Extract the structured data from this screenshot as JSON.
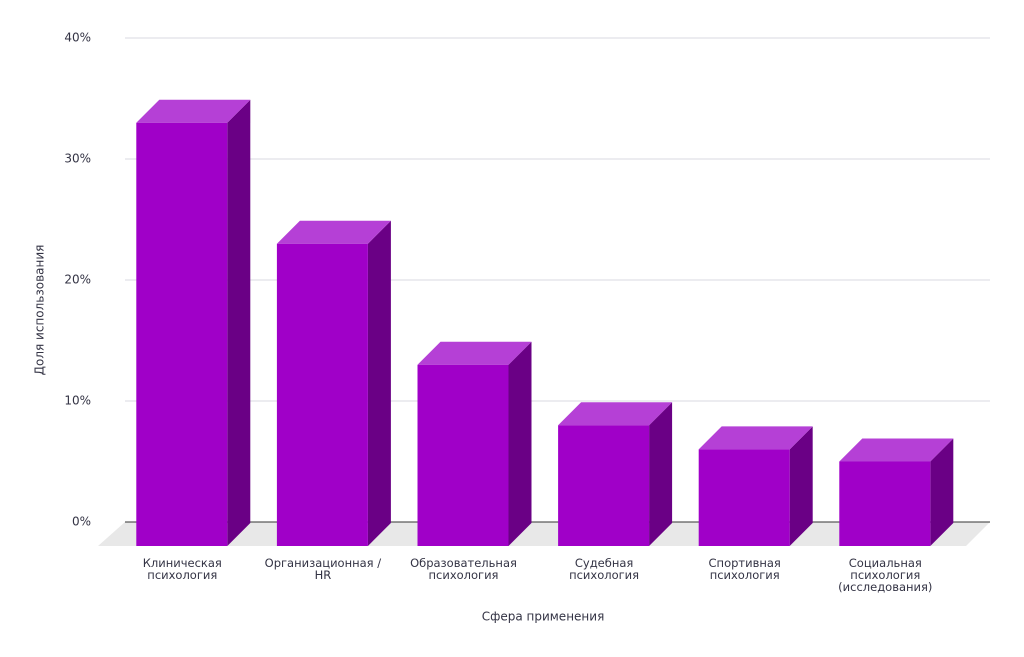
{
  "chart_data": {
    "type": "bar3d",
    "categories": [
      "Клиническая\nпсихология",
      "Организационная /\nHR",
      "Образовательная\nпсихология",
      "Судебная\nпсихология",
      "Спортивная\nпсихология",
      "Социальная\nпсихология\n(исследования)"
    ],
    "values": [
      33,
      23,
      13,
      8,
      6,
      5
    ],
    "color": "#a000c8",
    "ylim": [
      0,
      40
    ],
    "yticks": [
      {
        "value": 0,
        "label": "0%"
      },
      {
        "value": 10,
        "label": "10%"
      },
      {
        "value": 20,
        "label": "20%"
      },
      {
        "value": 30,
        "label": "30%"
      },
      {
        "value": 40,
        "label": "40%"
      }
    ],
    "grid": true,
    "y_label": "Доля использования",
    "x_label": "Сфера применения"
  }
}
